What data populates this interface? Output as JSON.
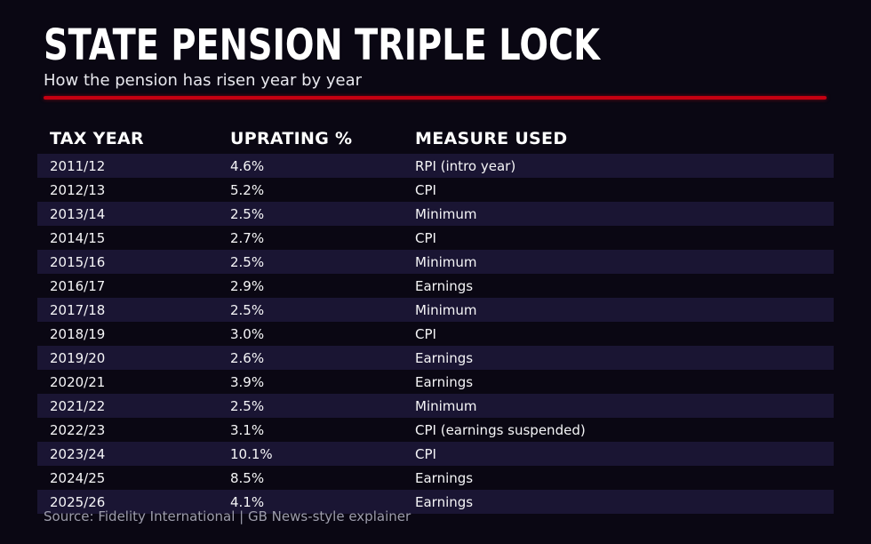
{
  "header": {
    "title": "STATE PENSION TRIPLE LOCK",
    "subtitle": "How the pension has risen year by year"
  },
  "accent_color": "#c50011",
  "colors": {
    "background": "#0a0713",
    "row_stripe": "#1a1533",
    "text": "#f5f5f7",
    "source_text": "#9c9cab"
  },
  "table": {
    "columns": [
      "TAX YEAR",
      "UPRATING %",
      "MEASURE USED"
    ],
    "rows": [
      [
        "2011/12",
        "4.6%",
        "RPI (intro year)"
      ],
      [
        "2012/13",
        "5.2%",
        "CPI"
      ],
      [
        "2013/14",
        "2.5%",
        "Minimum"
      ],
      [
        "2014/15",
        "2.7%",
        "CPI"
      ],
      [
        "2015/16",
        "2.5%",
        "Minimum"
      ],
      [
        "2016/17",
        "2.9%",
        "Earnings"
      ],
      [
        "2017/18",
        "2.5%",
        "Minimum"
      ],
      [
        "2018/19",
        "3.0%",
        "CPI"
      ],
      [
        "2019/20",
        "2.6%",
        "Earnings"
      ],
      [
        "2020/21",
        "3.9%",
        "Earnings"
      ],
      [
        "2021/22",
        "2.5%",
        "Minimum"
      ],
      [
        "2022/23",
        "3.1%",
        "CPI (earnings suspended)"
      ],
      [
        "2023/24",
        "10.1%",
        "CPI"
      ],
      [
        "2024/25",
        "8.5%",
        "Earnings"
      ],
      [
        "2025/26",
        "4.1%",
        "Earnings"
      ]
    ]
  },
  "footer": {
    "source": "Source: Fidelity International | GB News-style explainer"
  },
  "chart_data": {
    "type": "table",
    "title": "STATE PENSION TRIPLE LOCK",
    "subtitle": "How the pension has risen year by year",
    "columns": [
      "TAX YEAR",
      "UPRATING %",
      "MEASURE USED"
    ],
    "rows": [
      {
        "tax_year": "2011/12",
        "uprating_pct": 4.6,
        "measure": "RPI (intro year)"
      },
      {
        "tax_year": "2012/13",
        "uprating_pct": 5.2,
        "measure": "CPI"
      },
      {
        "tax_year": "2013/14",
        "uprating_pct": 2.5,
        "measure": "Minimum"
      },
      {
        "tax_year": "2014/15",
        "uprating_pct": 2.7,
        "measure": "CPI"
      },
      {
        "tax_year": "2015/16",
        "uprating_pct": 2.5,
        "measure": "Minimum"
      },
      {
        "tax_year": "2016/17",
        "uprating_pct": 2.9,
        "measure": "Earnings"
      },
      {
        "tax_year": "2017/18",
        "uprating_pct": 2.5,
        "measure": "Minimum"
      },
      {
        "tax_year": "2018/19",
        "uprating_pct": 3.0,
        "measure": "CPI"
      },
      {
        "tax_year": "2019/20",
        "uprating_pct": 2.6,
        "measure": "Earnings"
      },
      {
        "tax_year": "2020/21",
        "uprating_pct": 3.9,
        "measure": "Earnings"
      },
      {
        "tax_year": "2021/22",
        "uprating_pct": 2.5,
        "measure": "Minimum"
      },
      {
        "tax_year": "2022/23",
        "uprating_pct": 3.1,
        "measure": "CPI (earnings suspended)"
      },
      {
        "tax_year": "2023/24",
        "uprating_pct": 10.1,
        "measure": "CPI"
      },
      {
        "tax_year": "2024/25",
        "uprating_pct": 8.5,
        "measure": "Earnings"
      },
      {
        "tax_year": "2025/26",
        "uprating_pct": 4.1,
        "measure": "Earnings"
      }
    ],
    "source": "Source: Fidelity International | GB News-style explainer"
  }
}
